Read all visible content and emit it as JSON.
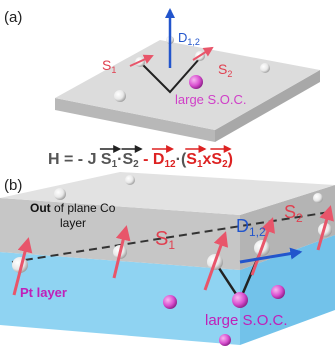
{
  "panel_a": {
    "label": "(a)",
    "dmi": {
      "symbol": "D",
      "sub": "1,2"
    },
    "spin1": {
      "symbol": "S",
      "sub": "1"
    },
    "spin2": {
      "symbol": "S",
      "sub": "2"
    },
    "soc": "large S.O.C."
  },
  "hamiltonian": [
    "H = - J ",
    "S",
    "1",
    "·",
    "S",
    "2",
    " - ",
    "D",
    "12",
    "·(",
    "S",
    "1",
    "x",
    "S",
    "2",
    ")"
  ],
  "panel_b": {
    "label": "(b)",
    "co_layer": [
      "Out",
      " of plane Co",
      "layer"
    ],
    "pt_layer": "Pt layer",
    "spin1": {
      "symbol": "S",
      "sub": "1"
    },
    "dmi": {
      "symbol": "D",
      "sub": "1,2"
    },
    "spin2": {
      "symbol": "S",
      "sub": "2"
    },
    "soc": "large S.O.C."
  }
}
